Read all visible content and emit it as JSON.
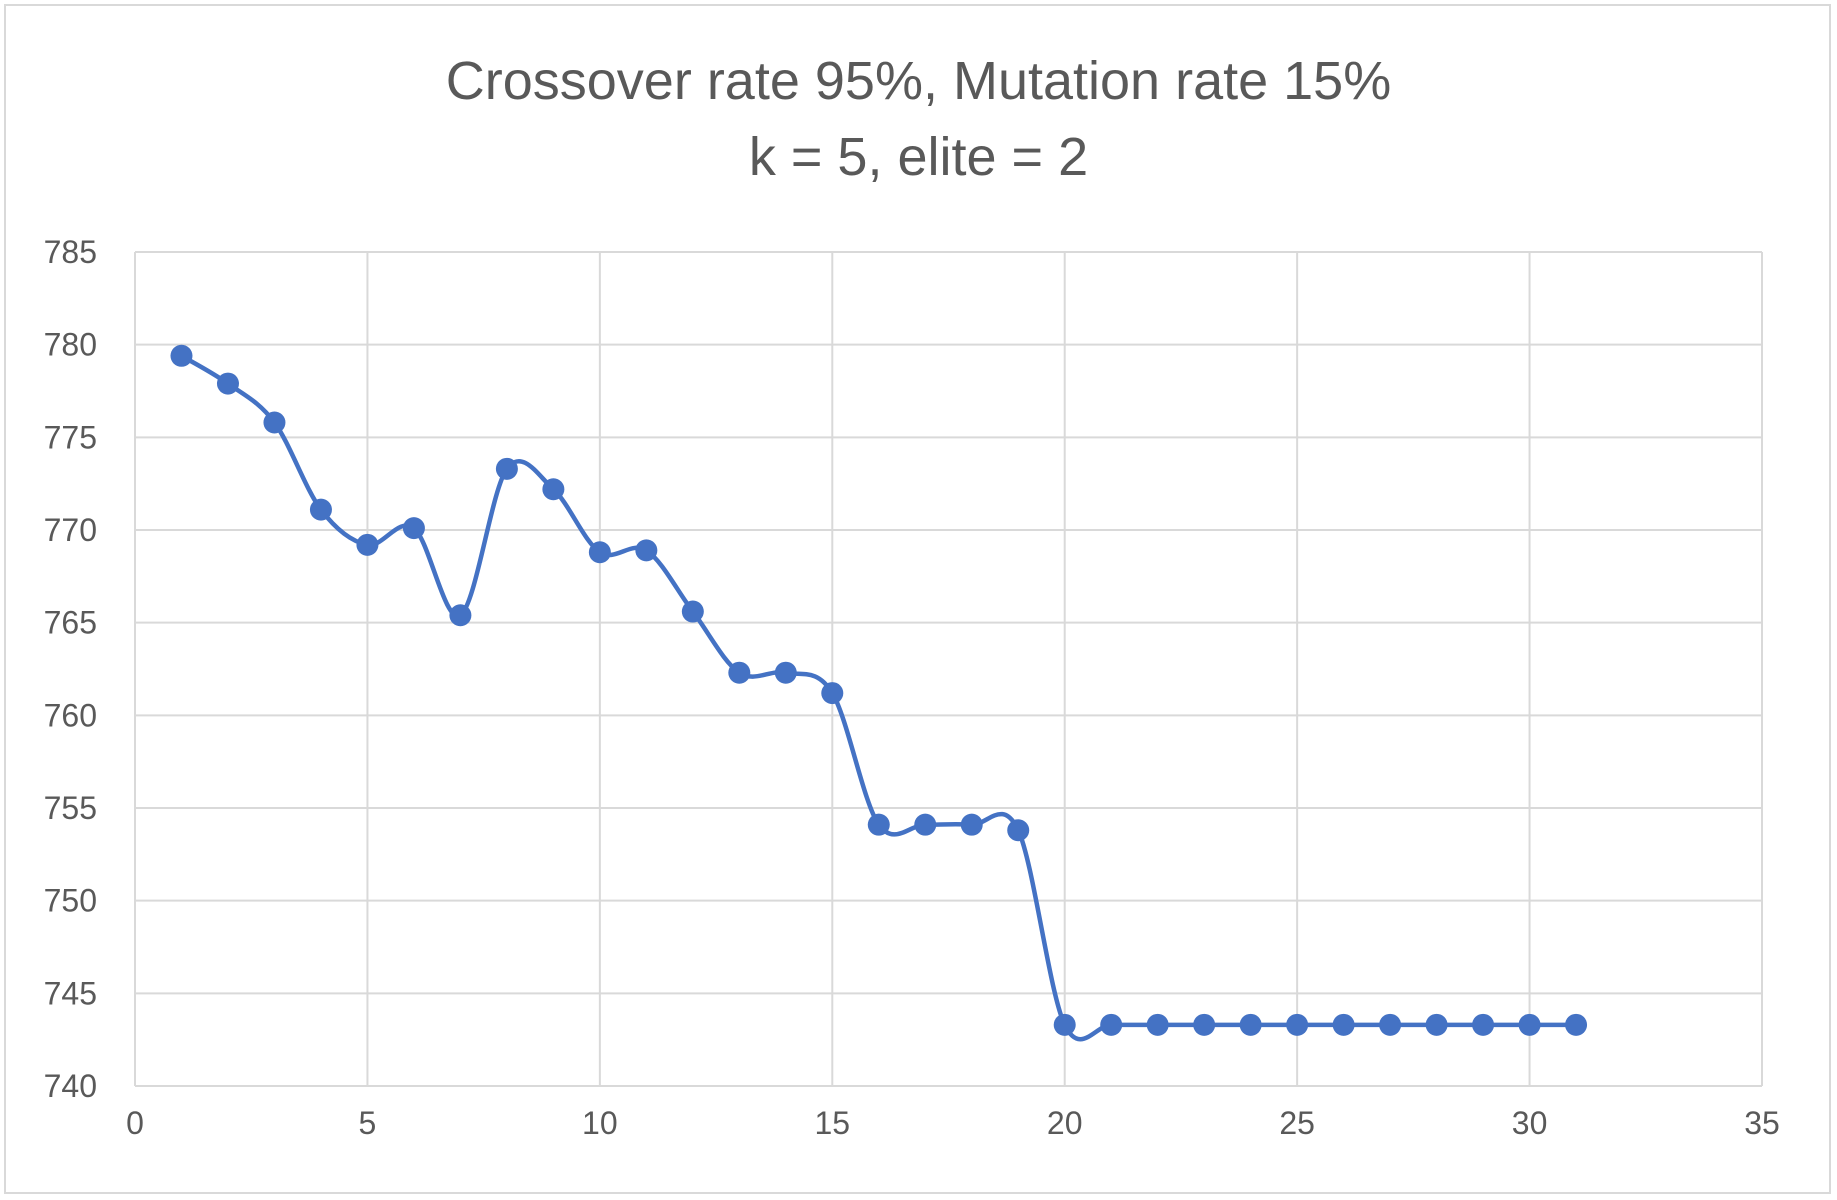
{
  "chart_data": {
    "type": "line",
    "title": "Crossover rate 95%, Mutation rate 15%",
    "subtitle": "k = 5, elite = 2",
    "xlabel": "",
    "ylabel": "",
    "xlim": [
      0,
      35
    ],
    "ylim": [
      740,
      785
    ],
    "xticks": [
      0,
      5,
      10,
      15,
      20,
      25,
      30,
      35
    ],
    "yticks": [
      740,
      745,
      750,
      755,
      760,
      765,
      770,
      775,
      780,
      785
    ],
    "grid": true,
    "smooth": true,
    "legend": "none",
    "series": [
      {
        "color": "#4472c4",
        "x": [
          1,
          2,
          3,
          4,
          5,
          6,
          7,
          8,
          9,
          10,
          11,
          12,
          13,
          14,
          15,
          16,
          17,
          18,
          19,
          20,
          21,
          22,
          23,
          24,
          25,
          26,
          27,
          28,
          29,
          30,
          31
        ],
        "y": [
          779.4,
          777.9,
          775.8,
          771.1,
          769.2,
          770.1,
          765.4,
          773.3,
          772.2,
          768.8,
          768.9,
          765.6,
          762.3,
          762.3,
          761.2,
          754.1,
          754.1,
          754.1,
          753.8,
          743.3,
          743.3,
          743.3,
          743.3,
          743.3,
          743.3,
          743.3,
          743.3,
          743.3,
          743.3,
          743.3,
          743.3
        ]
      }
    ]
  }
}
